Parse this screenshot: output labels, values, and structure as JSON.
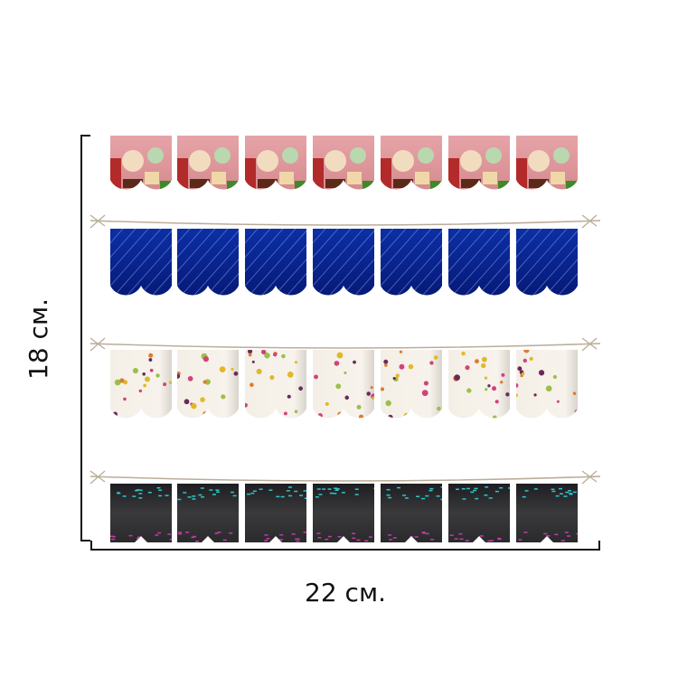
{
  "labels": {
    "height": "18 см.",
    "width": "22 см."
  }
}
